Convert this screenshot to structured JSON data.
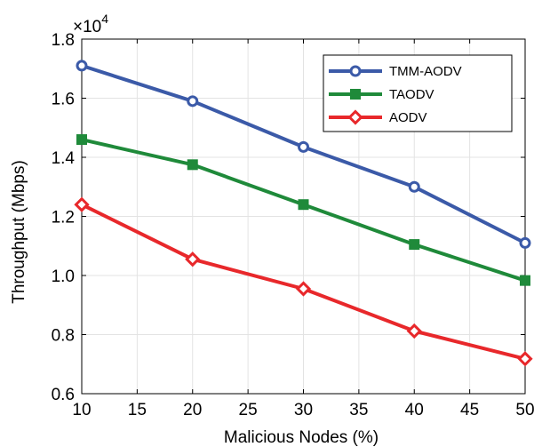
{
  "chart_data": {
    "type": "line",
    "x": [
      10,
      20,
      30,
      40,
      50
    ],
    "xlabel": "Malicious Nodes (%)",
    "ylabel": "Throughput (Mbps)",
    "xlim": [
      10,
      50
    ],
    "ylim": [
      0.6,
      1.8
    ],
    "xticks": [
      10,
      15,
      20,
      25,
      30,
      35,
      40,
      45,
      50
    ],
    "yticks": [
      "0.6",
      "0.8",
      "1.0",
      "1.2",
      "1.4",
      "1.6",
      "1.8"
    ],
    "y_multiplier": {
      "base": "×10",
      "exponent": "4"
    },
    "grid": true,
    "legend_position": "top-right",
    "series": [
      {
        "name": "TMM-AODV",
        "values": [
          1.71,
          1.59,
          1.435,
          1.3,
          1.11
        ],
        "color": "#3b5aa8",
        "marker": "circle"
      },
      {
        "name": "TAODV",
        "values": [
          1.46,
          1.375,
          1.24,
          1.105,
          0.983
        ],
        "color": "#1f8a3a",
        "marker": "square"
      },
      {
        "name": "AODV",
        "values": [
          1.24,
          1.055,
          0.955,
          0.812,
          0.718
        ],
        "color": "#e8282b",
        "marker": "diamond"
      }
    ]
  }
}
